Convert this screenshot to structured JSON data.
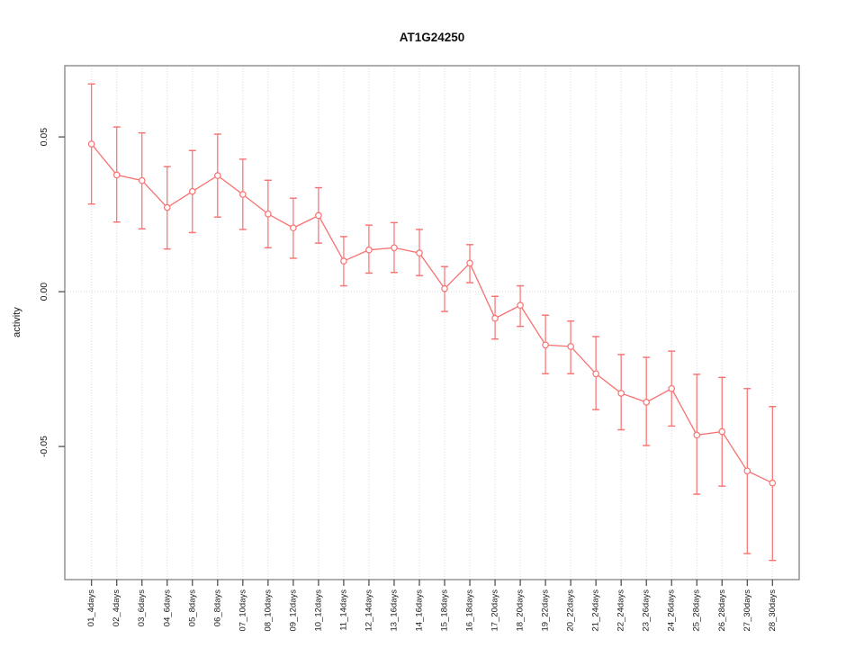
{
  "chart_data": {
    "type": "scatter",
    "title": "AT1G24250",
    "xlabel": "",
    "ylabel": "activity",
    "legend_position": "none",
    "marker": "open-circle",
    "grid": {
      "vertical_dotted_per_category": true,
      "horizontal_dotted_zero_line": true
    },
    "categories": [
      "01_4days",
      "02_4days",
      "03_6days",
      "04_6days",
      "05_8days",
      "06_8days",
      "07_10days",
      "08_10days",
      "09_12days",
      "10_12days",
      "11_14days",
      "12_14days",
      "13_16days",
      "14_16days",
      "15_18days",
      "16_18days",
      "17_20days",
      "18_20days",
      "19_22days",
      "20_22days",
      "21_24days",
      "22_24days",
      "23_26days",
      "24_26days",
      "25_28days",
      "26_28days",
      "27_30days",
      "28_30days"
    ],
    "series": [
      {
        "name": "activity",
        "values": [
          0.0477,
          0.0377,
          0.0359,
          0.0272,
          0.0324,
          0.0375,
          0.0314,
          0.0251,
          0.0206,
          0.0246,
          0.0099,
          0.0135,
          0.0142,
          0.0125,
          0.001,
          0.0092,
          -0.0086,
          -0.0044,
          -0.0172,
          -0.0177,
          -0.0265,
          -0.0328,
          -0.0357,
          -0.0313,
          -0.0463,
          -0.0452,
          -0.0579,
          -0.0618
        ],
        "error_upper": [
          0.0671,
          0.0532,
          0.0513,
          0.0404,
          0.0456,
          0.0509,
          0.0428,
          0.036,
          0.0302,
          0.0336,
          0.0178,
          0.0215,
          0.0223,
          0.0201,
          0.0081,
          0.0152,
          -0.0015,
          0.0019,
          -0.0076,
          -0.0095,
          -0.0145,
          -0.0203,
          -0.0212,
          -0.0192,
          -0.0267,
          -0.0277,
          -0.0313,
          -0.0371
        ],
        "error_lower": [
          0.0283,
          0.0225,
          0.0203,
          0.0138,
          0.0191,
          0.0241,
          0.0201,
          0.0142,
          0.0108,
          0.0157,
          0.0019,
          0.006,
          0.0062,
          0.0052,
          -0.0064,
          0.0029,
          -0.0153,
          -0.0112,
          -0.0265,
          -0.0265,
          -0.0381,
          -0.0446,
          -0.0497,
          -0.0434,
          -0.0654,
          -0.0628,
          -0.0846,
          -0.0868
        ]
      }
    ],
    "yticks": [
      0.05,
      0.0,
      -0.05
    ],
    "ytick_labels": [
      "0.05",
      "0.00",
      "-0.05"
    ],
    "ylim": [
      -0.093,
      0.073
    ],
    "colors": {
      "series": "#f87070",
      "grid": "#dadada",
      "frame": "#8c8c8c",
      "tick": "#454545",
      "text": "#1a1a1a",
      "background": "#ffffff"
    }
  }
}
